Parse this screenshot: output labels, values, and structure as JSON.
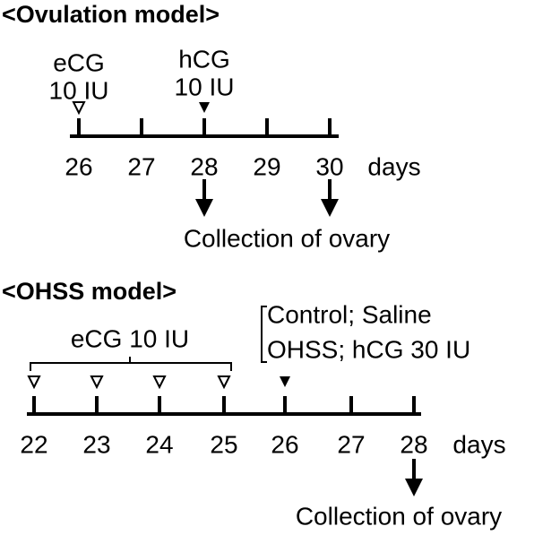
{
  "ovulation": {
    "title": "<Ovulation model>",
    "injections": [
      {
        "drug": "eCG",
        "dose": "10 IU"
      },
      {
        "drug": "hCG",
        "dose": "10 IU"
      }
    ],
    "days": [
      26,
      27,
      28,
      29,
      30
    ],
    "unit": "days",
    "collection": "Collection of ovary"
  },
  "ohss": {
    "title": "<OHSS model>",
    "groups": [
      "Control; Saline",
      "OHSS; hCG 30 IU"
    ],
    "injection": "eCG 10 IU",
    "days": [
      22,
      23,
      24,
      25,
      26,
      27,
      28
    ],
    "unit": "days",
    "collection": "Collection of ovary"
  }
}
